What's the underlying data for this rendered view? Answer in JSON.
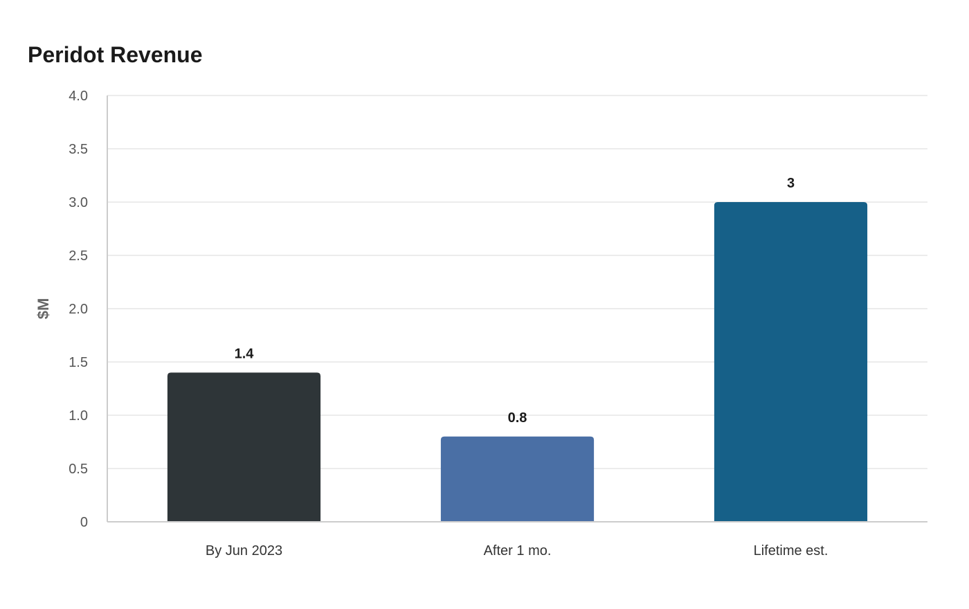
{
  "chart_data": {
    "type": "bar",
    "title": "Peridot Revenue",
    "xlabel": "",
    "ylabel": "$M",
    "categories": [
      "By Jun 2023",
      "After 1 mo.",
      "Lifetime est."
    ],
    "values": [
      1.4,
      0.8,
      3
    ],
    "value_labels": [
      "1.4",
      "0.8",
      "3"
    ],
    "bar_colors": [
      "#2e3538",
      "#4a6fa5",
      "#166088"
    ],
    "ylim": [
      0,
      4.0
    ],
    "yticks": [
      0,
      0.5,
      1.0,
      1.5,
      2.0,
      2.5,
      3.0,
      3.5,
      4.0
    ],
    "ytick_labels": [
      "0",
      "0.5",
      "1.0",
      "1.5",
      "2.0",
      "2.5",
      "3.0",
      "3.5",
      "4.0"
    ],
    "grid": true,
    "legend": "none"
  }
}
